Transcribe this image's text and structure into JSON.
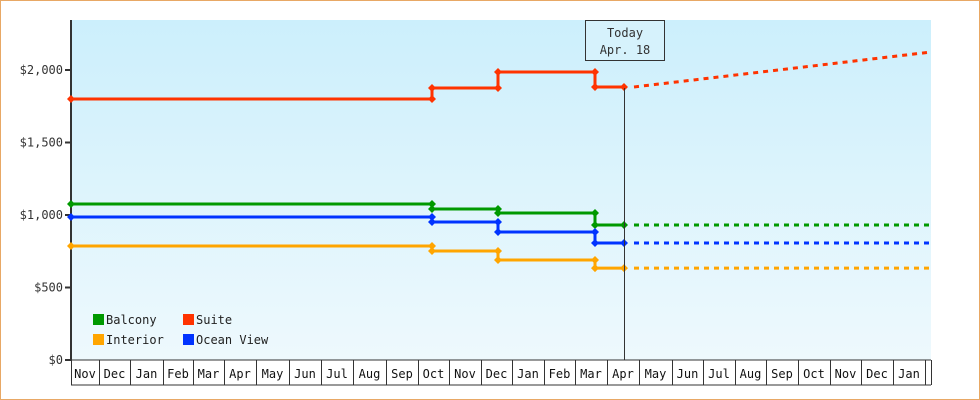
{
  "chart_data": {
    "type": "line",
    "title": "",
    "xlabel": "",
    "ylabel": "",
    "ylim": [
      0,
      2350
    ],
    "y_ticks": [
      {
        "label": "$0",
        "value": 0
      },
      {
        "label": "$500",
        "value": 500
      },
      {
        "label": "$1,000",
        "value": 1000
      },
      {
        "label": "$1,500",
        "value": 1500
      },
      {
        "label": "$2,000",
        "value": 2000
      }
    ],
    "x_months": [
      "Nov",
      "Dec",
      "Jan",
      "Feb",
      "Mar",
      "Apr",
      "May",
      "Jun",
      "Jul",
      "Aug",
      "Sep",
      "Oct",
      "Nov",
      "Dec",
      "Jan",
      "Feb",
      "Mar",
      "Apr",
      "May",
      "Jun",
      "Jul",
      "Aug",
      "Sep",
      "Oct",
      "Nov",
      "Dec",
      "Jan"
    ],
    "today_marker": {
      "line1": "Today",
      "line2": "Apr. 18"
    },
    "legend": [
      {
        "name": "Balcony",
        "color": "#009900"
      },
      {
        "name": "Suite",
        "color": "#ff3300"
      },
      {
        "name": "Interior",
        "color": "#ffa500"
      },
      {
        "name": "Ocean View",
        "color": "#0033ff"
      }
    ],
    "series": [
      {
        "name": "Suite",
        "color": "#ff3300",
        "steps": [
          {
            "date": "Nov",
            "value": 1800
          },
          {
            "date": "Oct (mid)",
            "value": 1876
          },
          {
            "date": "Dec",
            "value": 1986
          },
          {
            "date": "Mar",
            "value": 1883
          },
          {
            "date": "Apr 18",
            "value": 1883
          }
        ],
        "projection": [
          {
            "date": "Apr 18",
            "value": 1883
          },
          {
            "date": "Jan (end)",
            "value": 2124
          }
        ]
      },
      {
        "name": "Balcony",
        "color": "#009900",
        "steps": [
          {
            "date": "Nov",
            "value": 1076
          },
          {
            "date": "Oct (mid)",
            "value": 1041
          },
          {
            "date": "Dec",
            "value": 1014
          },
          {
            "date": "Mar",
            "value": 931
          },
          {
            "date": "Apr 18",
            "value": 931
          }
        ],
        "projection": [
          {
            "date": "Apr 18",
            "value": 931
          },
          {
            "date": "Jan (end)",
            "value": 931
          }
        ]
      },
      {
        "name": "Ocean View",
        "color": "#0033ff",
        "steps": [
          {
            "date": "Nov",
            "value": 986
          },
          {
            "date": "Oct (mid)",
            "value": 952
          },
          {
            "date": "Dec",
            "value": 883
          },
          {
            "date": "Mar",
            "value": 807
          },
          {
            "date": "Apr 18",
            "value": 807
          }
        ],
        "projection": [
          {
            "date": "Apr 18",
            "value": 807
          },
          {
            "date": "Jan (end)",
            "value": 807
          }
        ]
      },
      {
        "name": "Interior",
        "color": "#ffa500",
        "steps": [
          {
            "date": "Nov",
            "value": 786
          },
          {
            "date": "Oct (mid)",
            "value": 752
          },
          {
            "date": "Dec",
            "value": 690
          },
          {
            "date": "Mar",
            "value": 634
          },
          {
            "date": "Apr 18",
            "value": 634
          }
        ],
        "projection": [
          {
            "date": "Apr 18",
            "value": 634
          },
          {
            "date": "Jan (end)",
            "value": 634
          }
        ]
      }
    ]
  },
  "colors": {
    "border": "#e8a865",
    "bg_top": "#cceffc",
    "bg_bottom": "#eef9fd",
    "axis": "#333333"
  }
}
